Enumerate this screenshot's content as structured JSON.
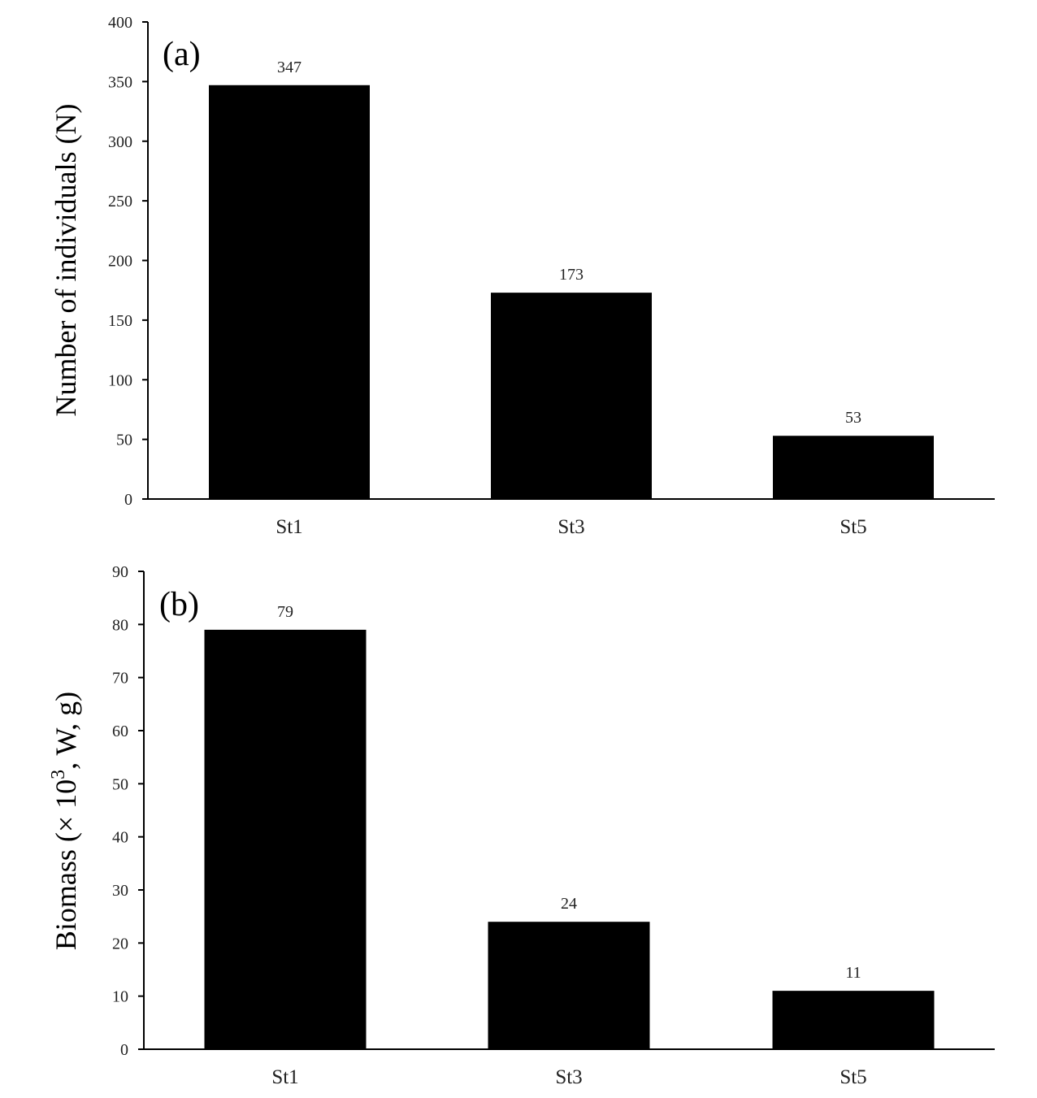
{
  "chart_data": [
    {
      "type": "bar",
      "panel_label": "(a)",
      "categories": [
        "St1",
        "St3",
        "St5"
      ],
      "values": [
        347,
        173,
        53
      ],
      "data_labels": [
        "347",
        "173",
        "53"
      ],
      "ylabel": "Number of individuals (N)",
      "xlabel": "",
      "ylim": [
        0,
        400
      ],
      "yticks": [
        0,
        50,
        100,
        150,
        200,
        250,
        300,
        350,
        400
      ],
      "grid": false,
      "bar_color": "#000000"
    },
    {
      "type": "bar",
      "panel_label": "(b)",
      "categories": [
        "St1",
        "St3",
        "St5"
      ],
      "values": [
        79,
        24,
        11
      ],
      "data_labels": [
        "79",
        "24",
        "11"
      ],
      "ylabel": "Biomass (× 10³, W, g)",
      "ylabel_parts": {
        "prefix": "Biomass (× 10",
        "superscript": "3",
        "suffix": ", W, g)"
      },
      "xlabel": "",
      "ylim": [
        0,
        90
      ],
      "yticks": [
        0,
        10,
        20,
        30,
        40,
        50,
        60,
        70,
        80,
        90
      ],
      "grid": false,
      "bar_color": "#000000"
    }
  ]
}
